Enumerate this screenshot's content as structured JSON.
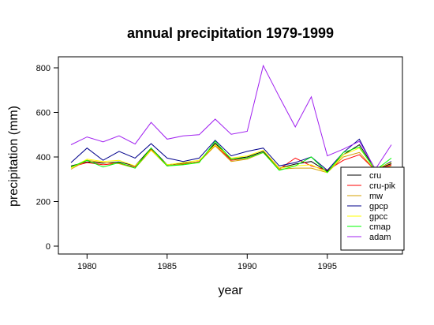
{
  "chart_data": {
    "type": "line",
    "title": "annual precipitation 1979-1999",
    "xlabel": "year",
    "ylabel": "precipitation (mm)",
    "xlim": [
      1979,
      1999
    ],
    "ylim": [
      0,
      800
    ],
    "x_ticks": [
      1980,
      1985,
      1990,
      1995
    ],
    "y_ticks": [
      0,
      200,
      400,
      600,
      800
    ],
    "grid": false,
    "legend_position": "bottom-right",
    "x": [
      1979,
      1980,
      1981,
      1982,
      1983,
      1984,
      1985,
      1986,
      1987,
      1988,
      1989,
      1990,
      1991,
      1992,
      1993,
      1994,
      1995,
      1996,
      1997,
      1998,
      1999
    ],
    "series": [
      {
        "name": "cru",
        "color": "#000000",
        "values": [
          360,
          378,
          372,
          378,
          360,
          440,
          365,
          372,
          378,
          462,
          390,
          400,
          425,
          350,
          368,
          380,
          335,
          410,
          455,
          345,
          370
        ]
      },
      {
        "name": "cru-pik",
        "color": "#ff0000",
        "values": [
          355,
          375,
          365,
          372,
          355,
          435,
          360,
          368,
          380,
          455,
          385,
          395,
          420,
          345,
          395,
          360,
          340,
          385,
          410,
          340,
          365
        ]
      },
      {
        "name": "mw",
        "color": "#d4a000",
        "values": [
          345,
          385,
          375,
          370,
          350,
          430,
          360,
          370,
          378,
          450,
          380,
          390,
          420,
          345,
          350,
          350,
          330,
          400,
          420,
          340,
          360
        ]
      },
      {
        "name": "gpcp",
        "color": "#00008b",
        "values": [
          375,
          440,
          385,
          425,
          395,
          460,
          395,
          380,
          395,
          475,
          405,
          425,
          440,
          360,
          375,
          400,
          340,
          420,
          480,
          340,
          380
        ]
      },
      {
        "name": "gpcc",
        "color": "#ffff00",
        "values": [
          350,
          390,
          380,
          385,
          360,
          430,
          365,
          375,
          385,
          455,
          395,
          405,
          430,
          350,
          360,
          365,
          330,
          410,
          440,
          345,
          375
        ]
      },
      {
        "name": "cmap",
        "color": "#00ff00",
        "values": [
          355,
          385,
          355,
          375,
          350,
          440,
          360,
          365,
          375,
          470,
          390,
          395,
          420,
          340,
          360,
          400,
          330,
          420,
          445,
          340,
          395
        ]
      },
      {
        "name": "adam",
        "color": "#a020f0",
        "values": [
          455,
          490,
          468,
          495,
          458,
          555,
          480,
          495,
          500,
          570,
          502,
          515,
          810,
          670,
          535,
          670,
          405,
          435,
          470,
          345,
          455
        ]
      }
    ]
  }
}
